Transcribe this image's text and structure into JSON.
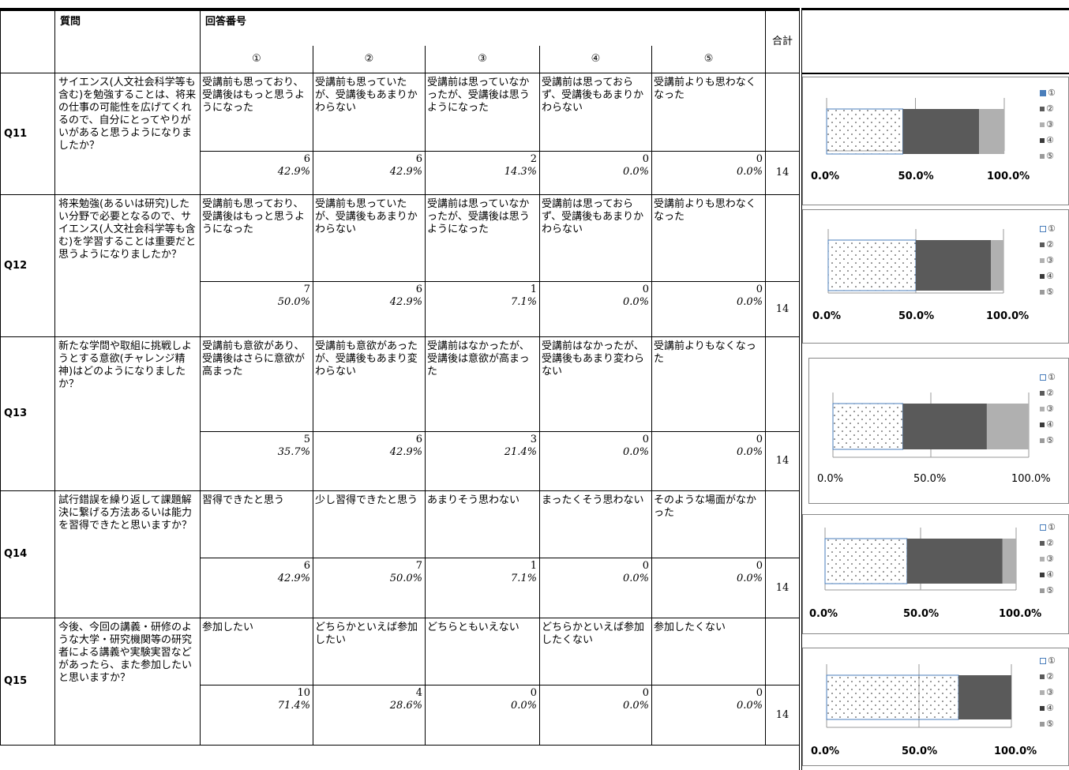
{
  "header": {
    "question_label": "質問",
    "answer_label": "回答番号",
    "total_label": "合計",
    "circles": [
      "①",
      "②",
      "③",
      "④",
      "⑤"
    ]
  },
  "questions": [
    {
      "id": "Q11",
      "text": "サイエンス(人文社会科学等も含む)を勉強することは、将来の仕事の可能性を広げてくれるので、自分にとってやりがいがあると思うようになりましたか？",
      "options": [
        "受講前も思っており、受講後はもっと思うようになった",
        "受講前も思っていたが、受講後もあまりかわらない",
        "受講前は思っていなかったが、受講後は思うようになった",
        "受講前は思っておらず、受講後もあまりかわらない",
        "受講前よりも思わなくなった"
      ],
      "counts": [
        "6",
        "6",
        "2",
        "0",
        "0"
      ],
      "pcts": [
        "42.9%",
        "42.9%",
        "14.3%",
        "0.0%",
        "0.0%"
      ],
      "total": "14"
    },
    {
      "id": "Q12",
      "text": "将来勉強(あるいは研究)したい分野で必要となるので、サイエンス(人文社会科学等も含む)を学習することは重要だと思うようになりましたか？",
      "options": [
        "受講前も思っており、受講後はもっと思うようになった",
        "受講前も思っていたが、受講後もあまりかわらない",
        "受講前は思っていなかったが、受講後は思うようになった",
        "受講前は思っておらず、受講後もあまりかわらない",
        "受講前よりも思わなくなった"
      ],
      "counts": [
        "7",
        "6",
        "1",
        "0",
        "0"
      ],
      "pcts": [
        "50.0%",
        "42.9%",
        "7.1%",
        "0.0%",
        "0.0%"
      ],
      "total": "14"
    },
    {
      "id": "Q13",
      "text": "新たな学問や取組に挑戦しようとする意欲(チャレンジ精神)はどのようになりましたか？",
      "options": [
        "受講前も意欲があり、受講後はさらに意欲が高まった",
        "受講前も意欲があったが、受講後もあまり変わらない",
        "受講前はなかったが、受講後は意欲が高まった",
        "受講前はなかったが、受講後もあまり変わらない",
        "受講前よりもなくなった"
      ],
      "counts": [
        "5",
        "6",
        "3",
        "0",
        "0"
      ],
      "pcts": [
        "35.7%",
        "42.9%",
        "21.4%",
        "0.0%",
        "0.0%"
      ],
      "total": "14"
    },
    {
      "id": "Q14",
      "text": "試行錯誤を繰り返して課題解決に繋げる方法あるいは能力を習得できたと思いますか？",
      "options": [
        "習得できたと思う",
        "少し習得できたと思う",
        "あまりそう思わない",
        "まったくそう思わない",
        "そのような場面がなかった"
      ],
      "counts": [
        "6",
        "7",
        "1",
        "0",
        "0"
      ],
      "pcts": [
        "42.9%",
        "50.0%",
        "7.1%",
        "0.0%",
        "0.0%"
      ],
      "total": "14"
    },
    {
      "id": "Q15",
      "text": "今後、今回の講義・研修のような大学・研究機関等の研究者による講義や実験実習などがあったら、また参加したいと思いますか？",
      "options": [
        "参加したい",
        "どちらかといえば参加したい",
        "どちらともいえない",
        "どちらかといえば参加したくない",
        "参加したくない"
      ],
      "counts": [
        "10",
        "4",
        "0",
        "0",
        "0"
      ],
      "pcts": [
        "71.4%",
        "28.6%",
        "0.0%",
        "0.0%",
        "0.0%"
      ],
      "total": "14"
    }
  ],
  "chart_data": [
    {
      "type": "bar",
      "stacked": true,
      "orientation": "horizontal",
      "categories": [
        "Q11"
      ],
      "series": [
        {
          "name": "①",
          "values": [
            42.9
          ]
        },
        {
          "name": "②",
          "values": [
            42.9
          ]
        },
        {
          "name": "③",
          "values": [
            14.3
          ]
        },
        {
          "name": "④",
          "values": [
            0.0
          ]
        },
        {
          "name": "⑤",
          "values": [
            0.0
          ]
        }
      ],
      "x_ticks": [
        "0.0%",
        "50.0%",
        "100.0%"
      ],
      "xlim": [
        0,
        100
      ],
      "legend": "right",
      "colors": [
        "#ffffff",
        "#5a5a5a",
        "#b0b0b0",
        "#3a3a3a",
        "#9a9a9a"
      ]
    },
    {
      "type": "bar",
      "stacked": true,
      "orientation": "horizontal",
      "categories": [
        "Q12"
      ],
      "series": [
        {
          "name": "①",
          "values": [
            50.0
          ]
        },
        {
          "name": "②",
          "values": [
            42.9
          ]
        },
        {
          "name": "③",
          "values": [
            7.1
          ]
        },
        {
          "name": "④",
          "values": [
            0.0
          ]
        },
        {
          "name": "⑤",
          "values": [
            0.0
          ]
        }
      ],
      "x_ticks": [
        "0.0%",
        "50.0%",
        "100.0%"
      ],
      "xlim": [
        0,
        100
      ],
      "legend": "right",
      "colors": [
        "#ffffff",
        "#5a5a5a",
        "#b0b0b0",
        "#3a3a3a",
        "#9a9a9a"
      ]
    },
    {
      "type": "bar",
      "stacked": true,
      "orientation": "horizontal",
      "categories": [
        "Q13"
      ],
      "series": [
        {
          "name": "①",
          "values": [
            35.7
          ]
        },
        {
          "name": "②",
          "values": [
            42.9
          ]
        },
        {
          "name": "③",
          "values": [
            21.4
          ]
        },
        {
          "name": "④",
          "values": [
            0.0
          ]
        },
        {
          "name": "⑤",
          "values": [
            0.0
          ]
        }
      ],
      "x_ticks": [
        "0.0%",
        "50.0%",
        "100.0%"
      ],
      "xlim": [
        0,
        100
      ],
      "legend": "right",
      "colors": [
        "#ffffff",
        "#5a5a5a",
        "#b0b0b0",
        "#3a3a3a",
        "#9a9a9a"
      ]
    },
    {
      "type": "bar",
      "stacked": true,
      "orientation": "horizontal",
      "categories": [
        "Q14"
      ],
      "series": [
        {
          "name": "①",
          "values": [
            42.9
          ]
        },
        {
          "name": "②",
          "values": [
            50.0
          ]
        },
        {
          "name": "③",
          "values": [
            7.1
          ]
        },
        {
          "name": "④",
          "values": [
            0.0
          ]
        },
        {
          "name": "⑤",
          "values": [
            0.0
          ]
        }
      ],
      "x_ticks": [
        "0.0%",
        "50.0%",
        "100.0%"
      ],
      "xlim": [
        0,
        100
      ],
      "legend": "right",
      "colors": [
        "#ffffff",
        "#5a5a5a",
        "#b0b0b0",
        "#3a3a3a",
        "#9a9a9a"
      ]
    },
    {
      "type": "bar",
      "stacked": true,
      "orientation": "horizontal",
      "categories": [
        "Q15"
      ],
      "series": [
        {
          "name": "①",
          "values": [
            71.4
          ]
        },
        {
          "name": "②",
          "values": [
            28.6
          ]
        },
        {
          "name": "③",
          "values": [
            0.0
          ]
        },
        {
          "name": "④",
          "values": [
            0.0
          ]
        },
        {
          "name": "⑤",
          "values": [
            0.0
          ]
        }
      ],
      "x_ticks": [
        "0.0%",
        "50.0%",
        "100.0%"
      ],
      "xlim": [
        0,
        100
      ],
      "legend": "right",
      "colors": [
        "#ffffff",
        "#5a5a5a",
        "#b0b0b0",
        "#3a3a3a",
        "#9a9a9a"
      ]
    }
  ]
}
